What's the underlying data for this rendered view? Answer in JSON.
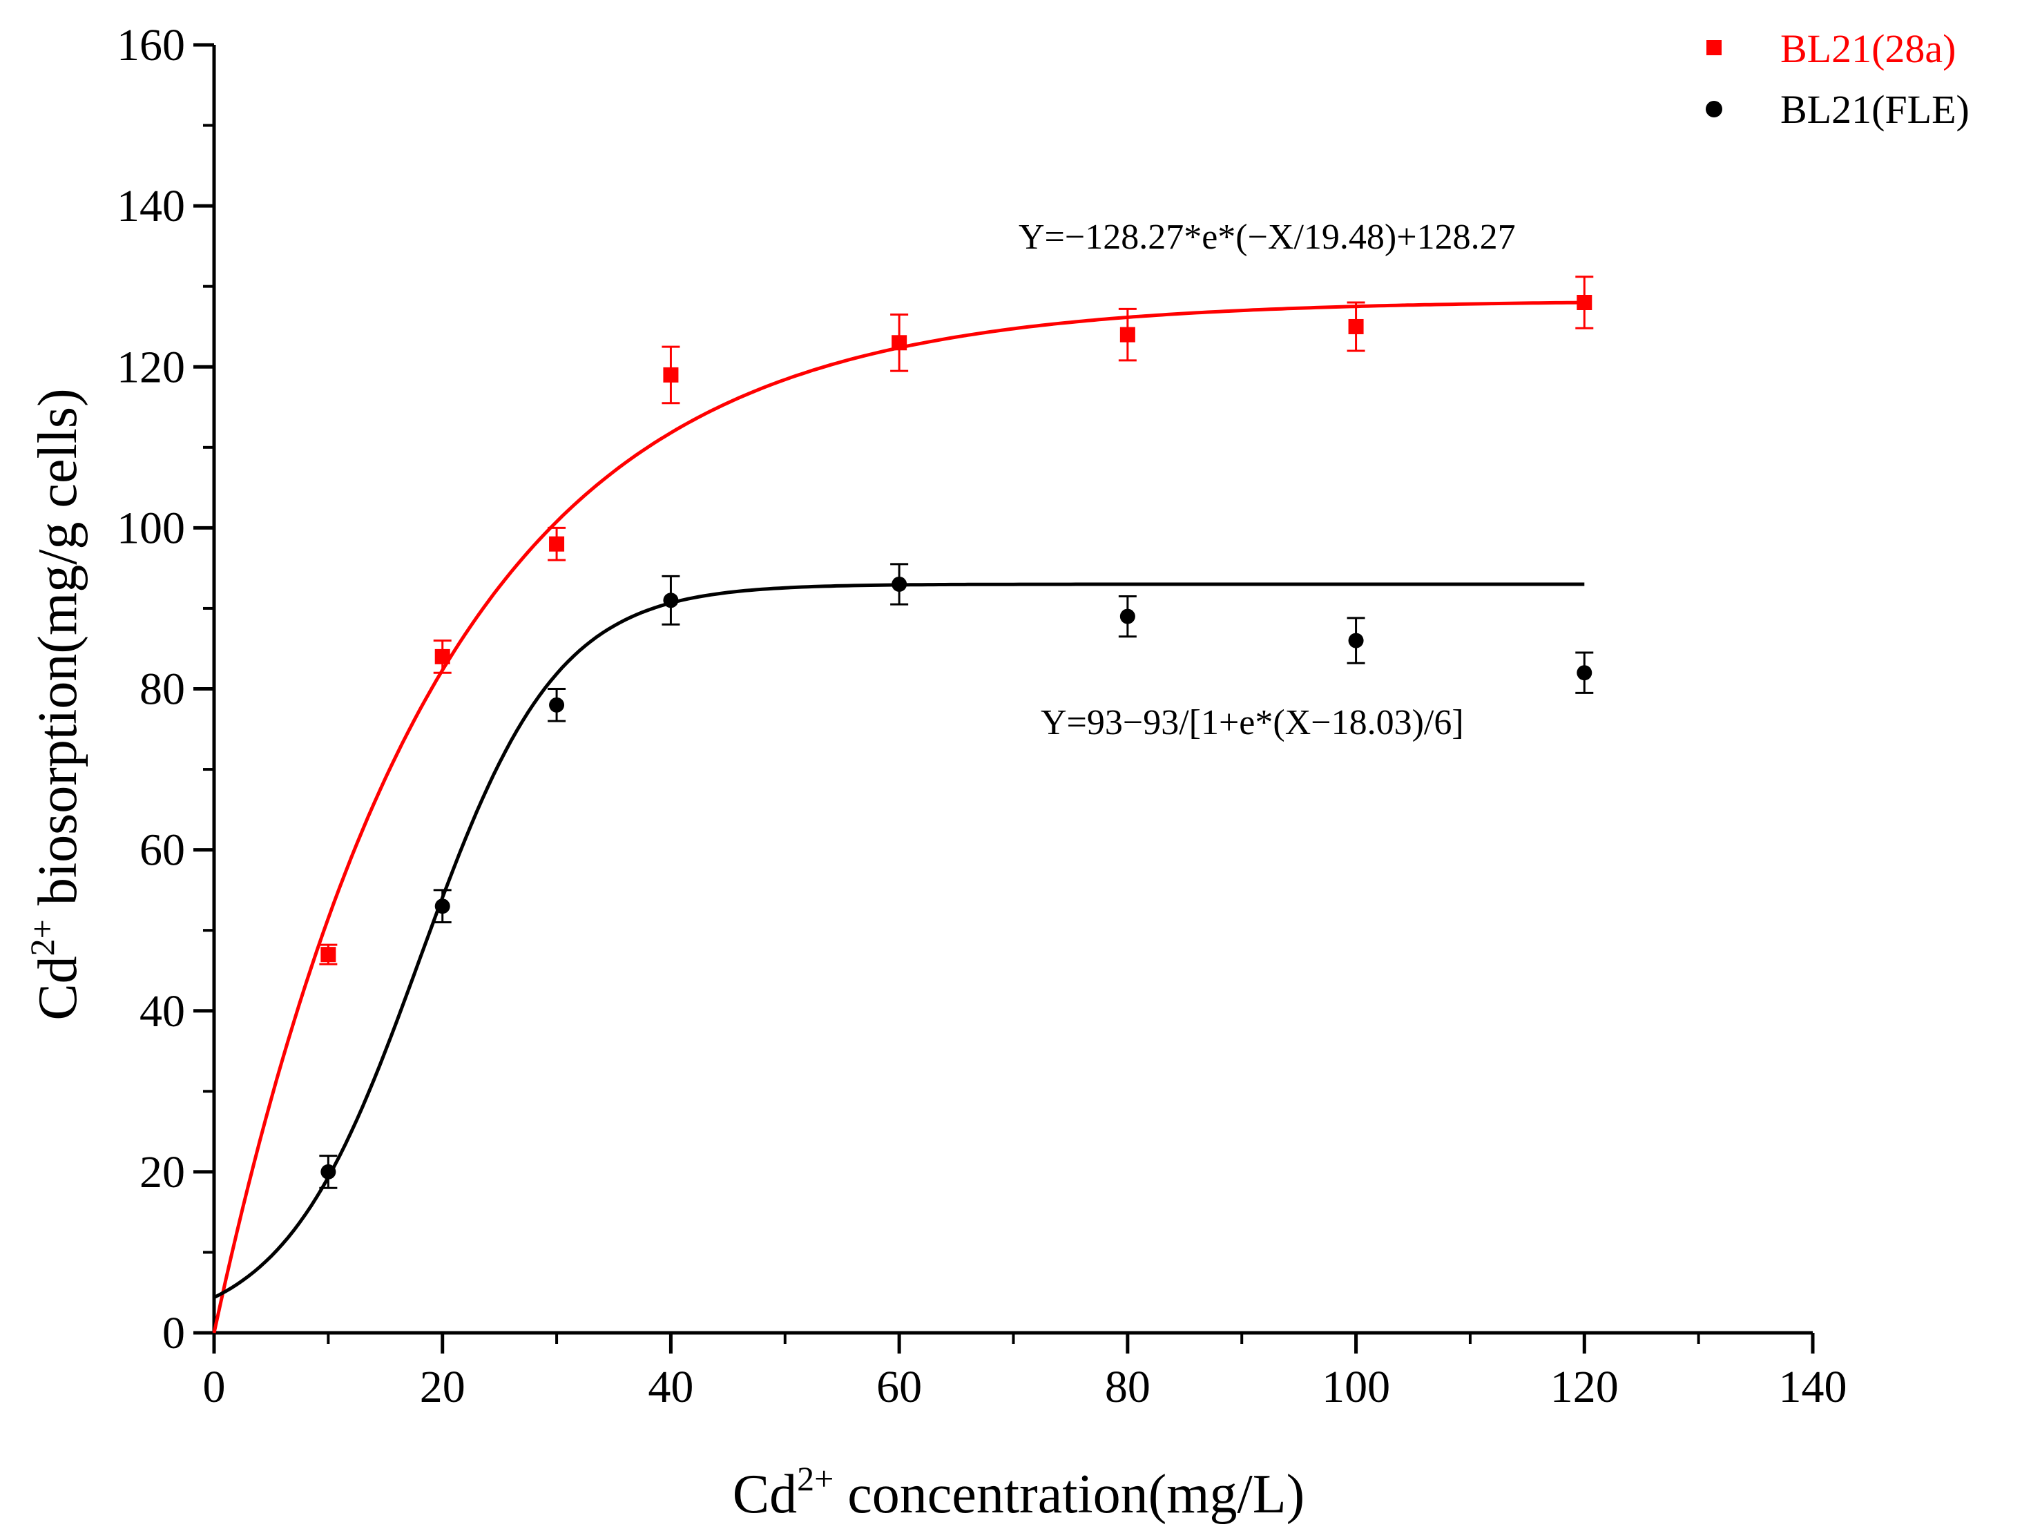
{
  "chart_data": {
    "type": "scatter",
    "xlabel": {
      "base": "Cd",
      "sup": "2+",
      "rest": " concentration(mg/L)"
    },
    "ylabel": {
      "base": "Cd",
      "sup": "2+",
      "rest": " biosorption(mg/g cells)"
    },
    "xlim": [
      0,
      140
    ],
    "ylim": [
      0,
      160
    ],
    "xticks": [
      0,
      20,
      40,
      60,
      80,
      100,
      120,
      140
    ],
    "yticks": [
      0,
      20,
      40,
      60,
      80,
      100,
      120,
      140,
      160
    ],
    "xtick_labels": [
      "0",
      "20",
      "40",
      "60",
      "80",
      "100",
      "120",
      "140"
    ],
    "ytick_labels": [
      "0",
      "20",
      "40",
      "60",
      "80",
      "100",
      "120",
      "140",
      "160"
    ],
    "grid": false,
    "legend_position": "top-right",
    "series": [
      {
        "name": "BL21(28a)",
        "color": "#ff0000",
        "marker": "square",
        "x": [
          10,
          20,
          30,
          40,
          60,
          80,
          100,
          120
        ],
        "y": [
          47,
          84,
          98,
          119,
          123,
          124,
          125,
          128
        ],
        "err": [
          1.2,
          2.0,
          2.0,
          3.5,
          3.5,
          3.2,
          3.0,
          3.2
        ],
        "fit": {
          "kind": "exp",
          "A": 128.27,
          "t": 19.48
        },
        "equation": "Y=−128.27*e*(−X/19.48)+128.27"
      },
      {
        "name": "BL21(FLE)",
        "color": "#000000",
        "marker": "circle",
        "x": [
          10,
          20,
          30,
          40,
          60,
          80,
          100,
          120
        ],
        "y": [
          20,
          53,
          78,
          91,
          93,
          89,
          86,
          82
        ],
        "err": [
          2.0,
          2.0,
          2.0,
          3.0,
          2.5,
          2.5,
          2.8,
          2.5
        ],
        "fit": {
          "kind": "boltzmann",
          "A": 93,
          "x0": 18.03,
          "dx": 6
        },
        "equation": "Y=93−93/[1+e*(X−18.03)/6]"
      }
    ]
  }
}
